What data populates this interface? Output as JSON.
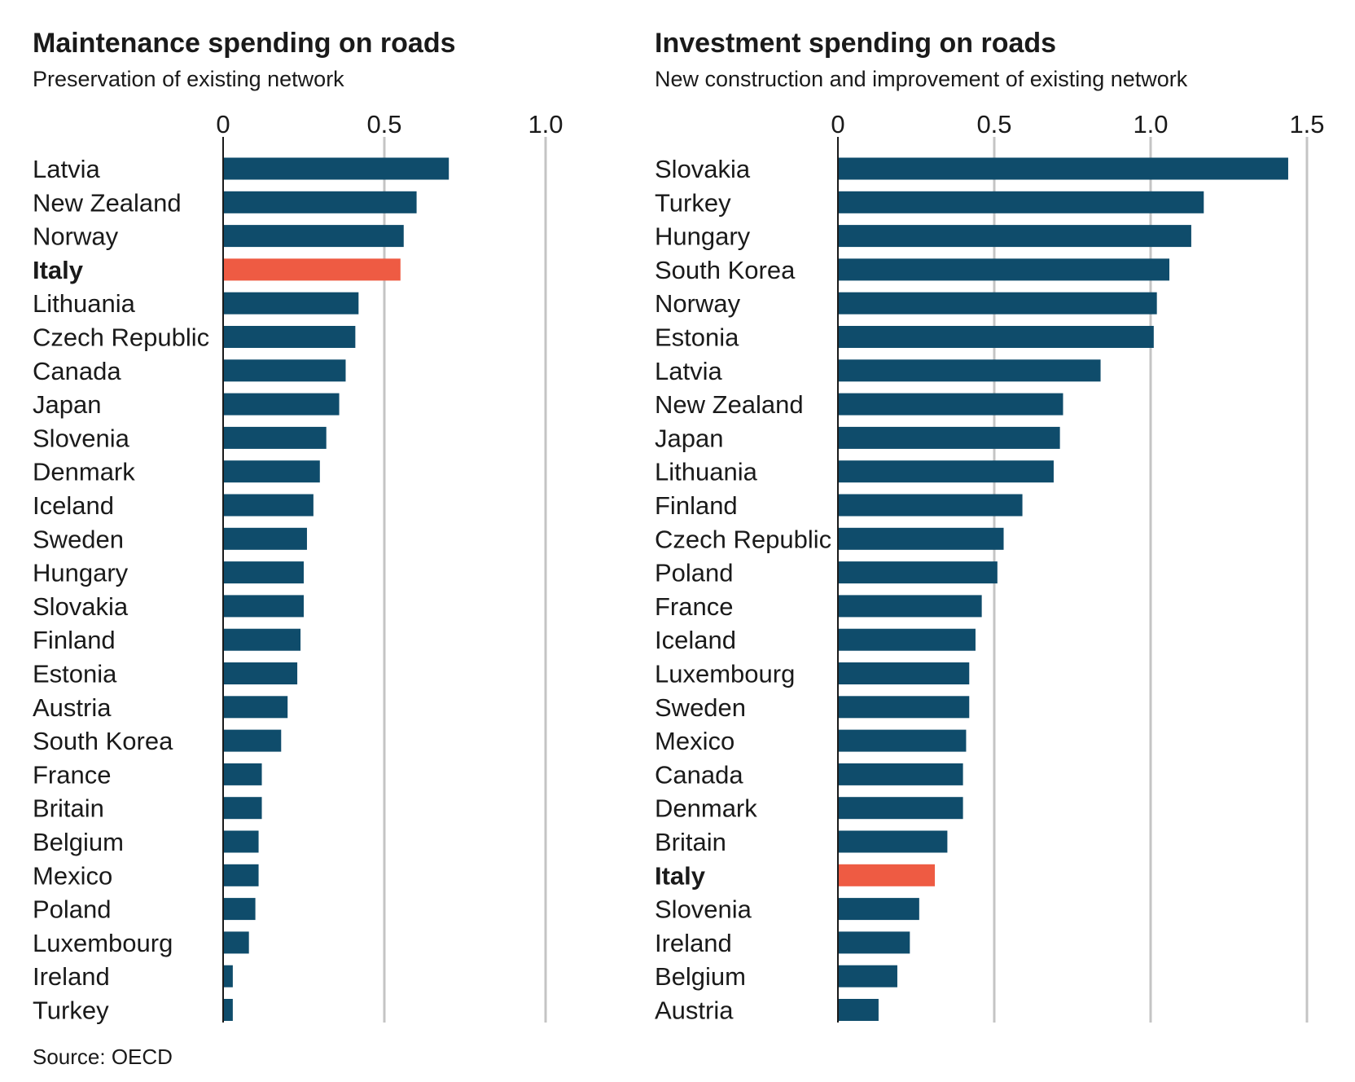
{
  "source": "Source: OECD",
  "colors": {
    "bar": "#0f4c6b",
    "highlight": "#ee5b43"
  },
  "chart_data": [
    {
      "type": "bar",
      "orientation": "horizontal",
      "title": "Maintenance spending on roads",
      "subtitle": "Preservation of existing network",
      "xlim": [
        0,
        1.0
      ],
      "ticks": [
        0,
        0.5,
        1.0
      ],
      "tick_labels": [
        "0",
        "0.5",
        "1.0"
      ],
      "grid": true,
      "highlight": "Italy",
      "categories": [
        "Latvia",
        "New Zealand",
        "Norway",
        "Italy",
        "Lithuania",
        "Czech Republic",
        "Canada",
        "Japan",
        "Slovenia",
        "Denmark",
        "Iceland",
        "Sweden",
        "Hungary",
        "Slovakia",
        "Finland",
        "Estonia",
        "Austria",
        "South Korea",
        "France",
        "Britain",
        "Belgium",
        "Mexico",
        "Poland",
        "Luxembourg",
        "Ireland",
        "Turkey"
      ],
      "values": [
        0.7,
        0.6,
        0.56,
        0.55,
        0.42,
        0.41,
        0.38,
        0.36,
        0.32,
        0.3,
        0.28,
        0.26,
        0.25,
        0.25,
        0.24,
        0.23,
        0.2,
        0.18,
        0.12,
        0.12,
        0.11,
        0.11,
        0.1,
        0.08,
        0.03,
        0.03
      ]
    },
    {
      "type": "bar",
      "orientation": "horizontal",
      "title": "Investment spending on roads",
      "subtitle": "New construction and improvement of existing network",
      "xlim": [
        0,
        1.5
      ],
      "ticks": [
        0,
        0.5,
        1.0,
        1.5
      ],
      "tick_labels": [
        "0",
        "0.5",
        "1.0",
        "1.5"
      ],
      "grid": true,
      "highlight": "Italy",
      "categories": [
        "Slovakia",
        "Turkey",
        "Hungary",
        "South Korea",
        "Norway",
        "Estonia",
        "Latvia",
        "New Zealand",
        "Japan",
        "Lithuania",
        "Finland",
        "Czech Republic",
        "Poland",
        "France",
        "Iceland",
        "Luxembourg",
        "Sweden",
        "Mexico",
        "Canada",
        "Denmark",
        "Britain",
        "Italy",
        "Slovenia",
        "Ireland",
        "Belgium",
        "Austria"
      ],
      "values": [
        1.44,
        1.17,
        1.13,
        1.06,
        1.02,
        1.01,
        0.84,
        0.72,
        0.71,
        0.69,
        0.59,
        0.53,
        0.51,
        0.46,
        0.44,
        0.42,
        0.42,
        0.41,
        0.4,
        0.4,
        0.35,
        0.31,
        0.26,
        0.23,
        0.19,
        0.13
      ]
    }
  ]
}
